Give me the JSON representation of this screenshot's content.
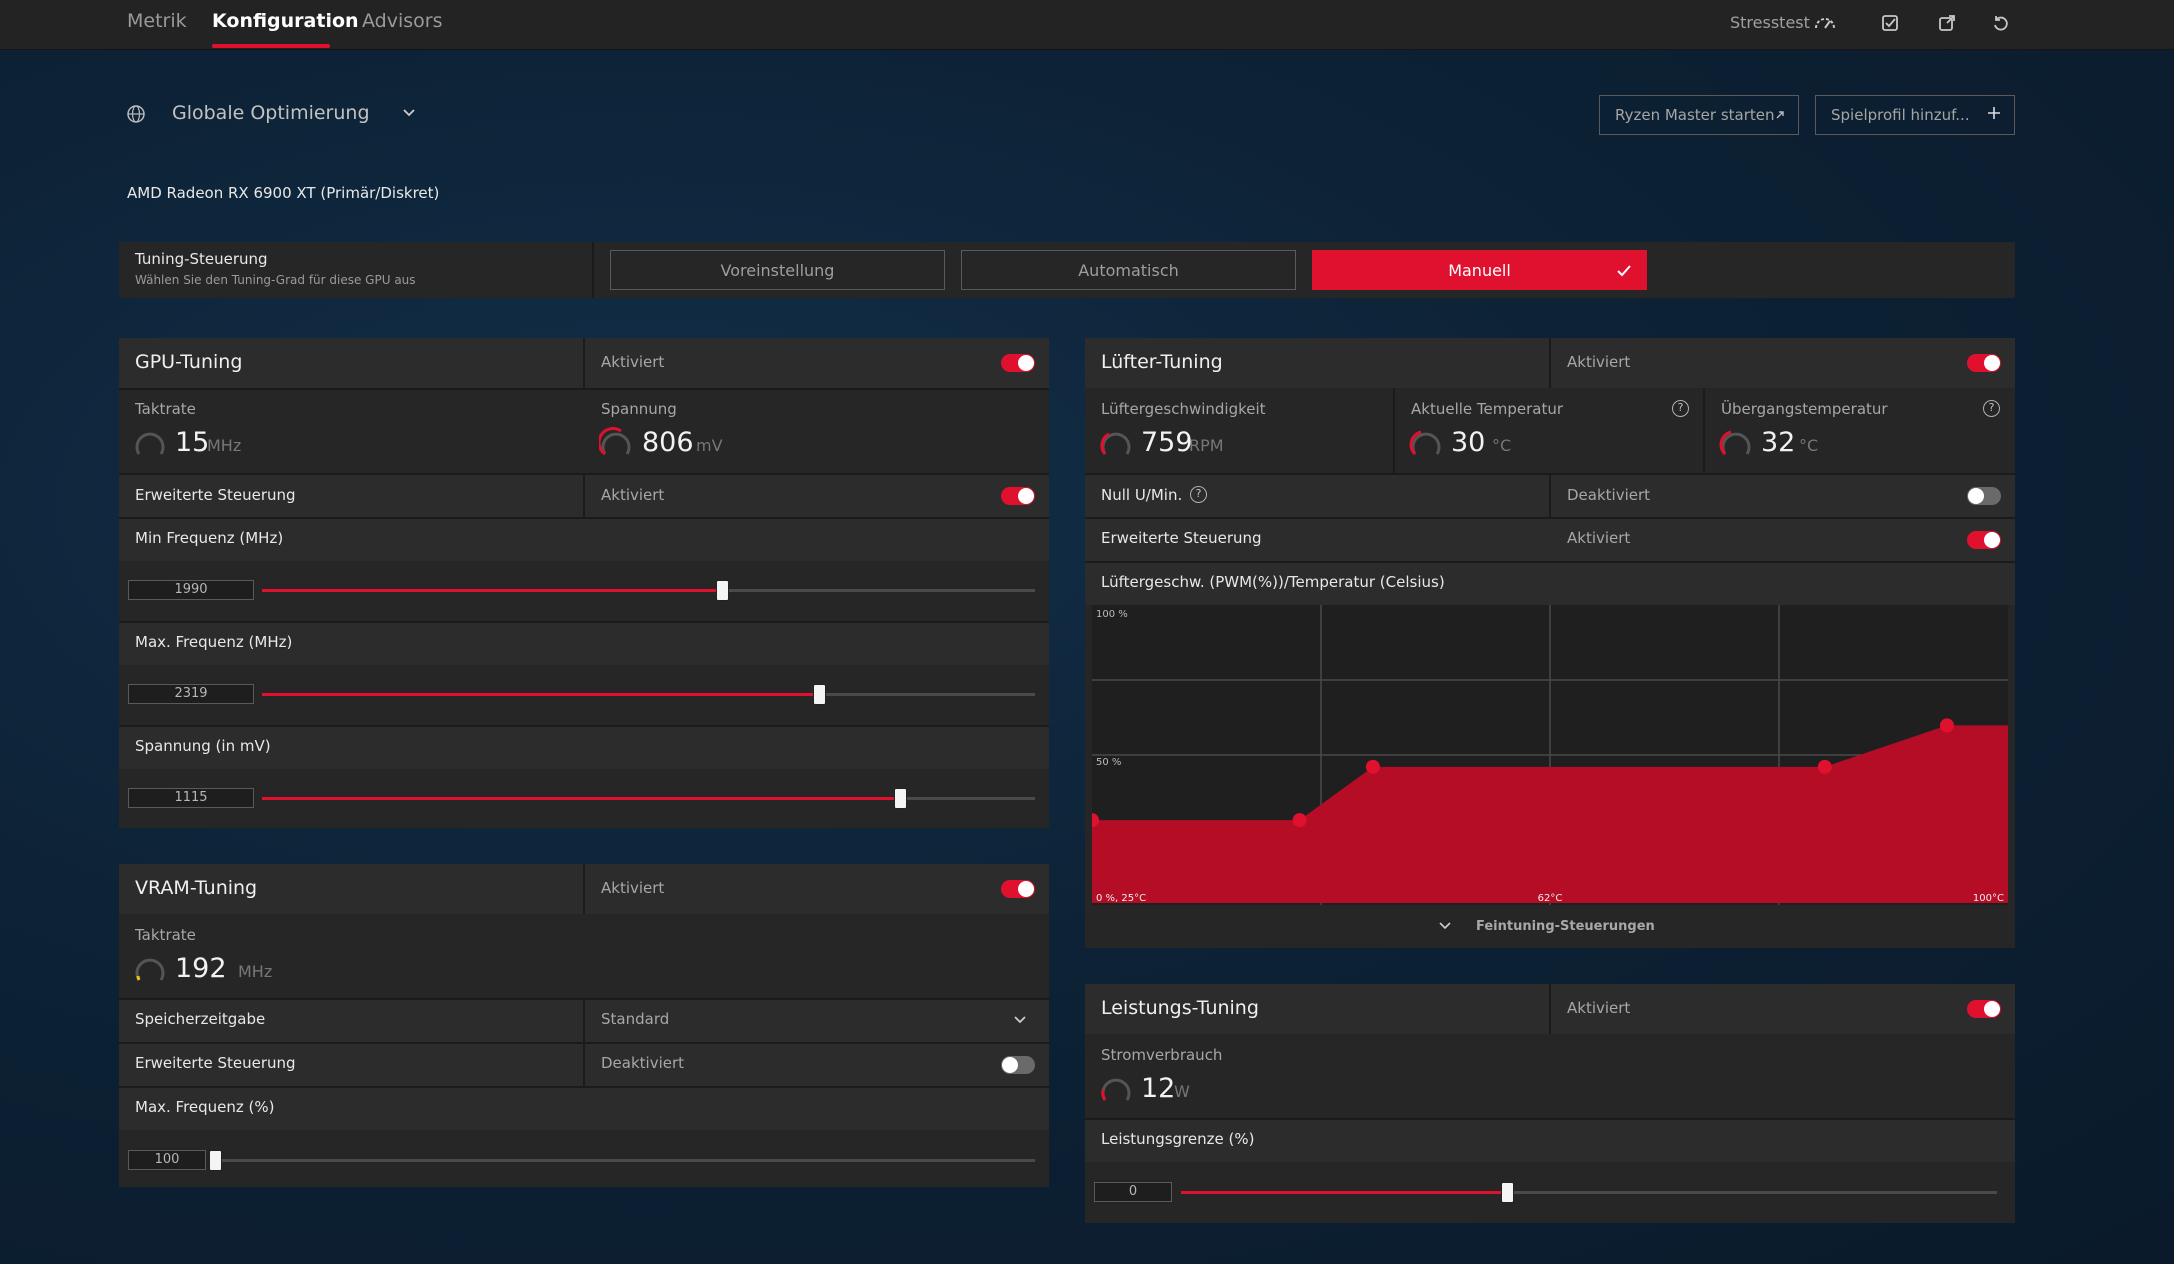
{
  "tabs": [
    "Metrik",
    "Konfiguration",
    "Advisors"
  ],
  "topbar": {
    "stresstest": "Stresstest"
  },
  "profile": {
    "selected": "Globale Optimierung"
  },
  "buttons": {
    "ryzen": "Ryzen Master starten",
    "add_profile": "Spielprofil hinzuf..."
  },
  "gpu_name": "AMD Radeon RX 6900 XT (Primär/Diskret)",
  "tuning_control": {
    "title": "Tuning-Steuerung",
    "subtitle": "Wählen Sie den Tuning-Grad für diese GPU aus",
    "options": [
      "Voreinstellung",
      "Automatisch",
      "Manuell"
    ],
    "selected": "Manuell"
  },
  "gpu_tuning": {
    "title": "GPU-Tuning",
    "status": "Aktiviert",
    "clock_label": "Taktrate",
    "clock_value": "15",
    "clock_unit": "MHz",
    "voltage_label": "Spannung",
    "voltage_value": "806",
    "voltage_unit": "mV",
    "advanced_label": "Erweiterte Steuerung",
    "advanced_status": "Aktiviert",
    "min_freq_label": "Min Frequenz (MHz)",
    "min_freq_value": "1990",
    "min_freq_fraction": 0.595,
    "max_freq_label": "Max. Frequenz (MHz)",
    "max_freq_value": "2319",
    "max_freq_fraction": 0.72,
    "voltage_mv_label": "Spannung (in mV)",
    "voltage_mv_value": "1115",
    "voltage_mv_fraction": 0.825
  },
  "vram_tuning": {
    "title": "VRAM-Tuning",
    "status": "Aktiviert",
    "clock_label": "Taktrate",
    "clock_value": "192",
    "clock_unit": "MHz",
    "timing_label": "Speicherzeitgabe",
    "timing_value": "Standard",
    "advanced_label": "Erweiterte Steuerung",
    "advanced_status": "Deaktiviert",
    "max_freq_label": "Max. Frequenz (%)",
    "max_freq_value": "100",
    "max_freq_fraction": 0.0
  },
  "fan_tuning": {
    "title": "Lüfter-Tuning",
    "status": "Aktiviert",
    "speed_label": "Lüftergeschwindigkeit",
    "speed_value": "759",
    "speed_unit": "RPM",
    "temp_label": "Aktuelle Temperatur",
    "temp_value": "30",
    "temp_unit": "°C",
    "junction_label": "Übergangstemperatur",
    "junction_value": "32",
    "junction_unit": "°C",
    "zero_rpm_label": "Null U/Min.",
    "zero_rpm_status": "Deaktiviert",
    "advanced_label": "Erweiterte Steuerung",
    "advanced_status": "Aktiviert",
    "curve_label": "Lüftergeschw. (PWM(%))/Temperatur (Celsius)",
    "fine_tuning": "Feintuning-Steuerungen"
  },
  "chart_data": {
    "type": "area",
    "x": [
      25,
      42,
      48,
      85,
      95
    ],
    "values": [
      28,
      28,
      46,
      46,
      60
    ],
    "xlim": [
      25,
      100
    ],
    "ylim": [
      0,
      100
    ],
    "tick_labels": {
      "y_top": "100 %",
      "y_mid": "50 %",
      "origin": "0 %, 25°C",
      "x_mid": "62°C",
      "x_max": "100°C"
    },
    "grid": true
  },
  "power_tuning": {
    "title": "Leistungs-Tuning",
    "status": "Aktiviert",
    "power_label": "Stromverbrauch",
    "power_value": "12",
    "power_unit": "W",
    "limit_label": "Leistungsgrenze (%)",
    "limit_value": "0",
    "limit_fraction": 0.4
  },
  "colors": {
    "accent": "#e0102f",
    "panel": "#262626",
    "row": "#2c2c2c"
  }
}
